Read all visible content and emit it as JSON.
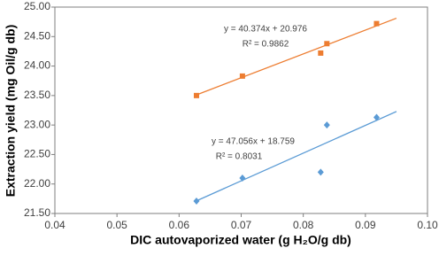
{
  "chart_data": {
    "type": "scatter",
    "x_label": "DIC autovaporized water (g H₂O/g db)",
    "y_label": "Extraction yield (mg Oil/g db)",
    "xlim": [
      0.04,
      0.1
    ],
    "xticks": [
      0.04,
      0.05,
      0.06,
      0.07,
      0.08,
      0.09,
      {
        "value": 0.1,
        "label": "0.10"
      }
    ],
    "ylim": [
      21.5,
      25.0
    ],
    "yticks": [
      {
        "value": 21.5,
        "label": "21.50"
      },
      {
        "value": 22.0,
        "label": "22.00"
      },
      {
        "value": 22.5,
        "label": "22.50"
      },
      {
        "value": 23.0,
        "label": "23.00"
      },
      {
        "value": 23.5,
        "label": "23.50"
      },
      {
        "value": 24.0,
        "label": "24.00"
      },
      {
        "value": 24.5,
        "label": "24.50"
      },
      {
        "value": 25.0,
        "label": "25.00"
      }
    ],
    "grid": false,
    "series": [
      {
        "color": "#ed7d31",
        "marker": "square",
        "x": [
          0.0628,
          0.0702,
          0.0828,
          0.0838,
          0.0918
        ],
        "values": [
          23.5,
          23.83,
          24.22,
          24.38,
          24.72
        ],
        "trendline": {
          "slope": 40.374,
          "intercept": 20.976,
          "x_range": [
            0.0628,
            0.095
          ],
          "equation": "y = 40.374x + 20.976",
          "r2": "R² = 0.9862"
        }
      },
      {
        "color": "#5b9bd5",
        "marker": "diamond",
        "x": [
          0.0628,
          0.0702,
          0.0828,
          0.0838,
          0.0918
        ],
        "values": [
          21.71,
          22.1,
          22.2,
          23.0,
          23.13
        ],
        "trendline": {
          "slope": 47.056,
          "intercept": 18.759,
          "x_range": [
            0.0628,
            0.095
          ],
          "equation": "y = 47.056x + 18.759",
          "r2": "R² = 0.8031"
        }
      }
    ]
  }
}
